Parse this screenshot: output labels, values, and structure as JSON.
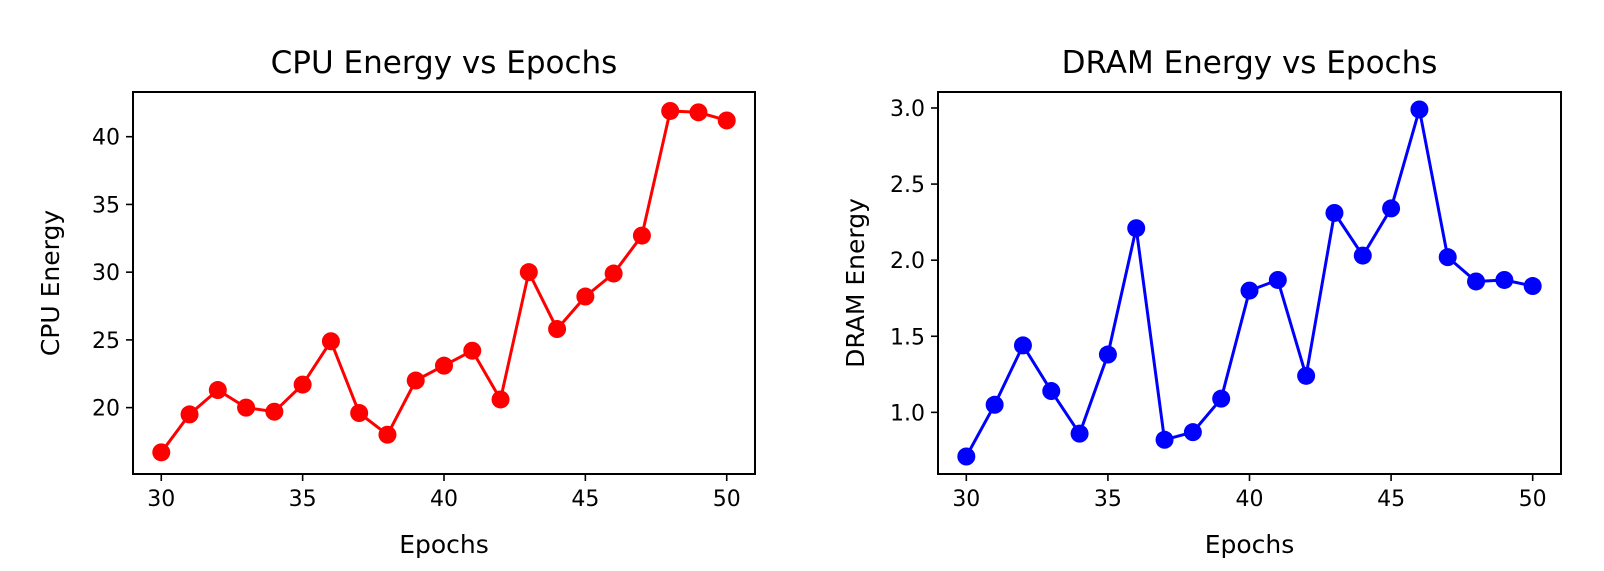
{
  "chart_data": [
    {
      "type": "line",
      "title": "CPU Energy vs Epochs",
      "xlabel": "Epochs",
      "ylabel": "CPU Energy",
      "xlim": [
        29,
        51
      ],
      "ylim": [
        15.1,
        43.3
      ],
      "xticks": [
        30,
        35,
        40,
        45,
        50
      ],
      "yticks": [
        20,
        25,
        30,
        35,
        40
      ],
      "grid": false,
      "color": "#ff0000",
      "marker": "circle",
      "x": [
        30,
        31,
        32,
        33,
        34,
        35,
        36,
        37,
        38,
        39,
        40,
        41,
        42,
        43,
        44,
        45,
        46,
        47,
        48,
        49,
        50
      ],
      "values": [
        16.7,
        19.5,
        21.3,
        20.0,
        19.7,
        21.7,
        24.9,
        19.6,
        18.0,
        22.0,
        23.1,
        24.2,
        20.6,
        30.0,
        25.8,
        28.2,
        29.9,
        32.7,
        41.9,
        41.8,
        41.2
      ]
    },
    {
      "type": "line",
      "title": "DRAM Energy vs Epochs",
      "xlabel": "Epochs",
      "ylabel": "DRAM Energy",
      "xlim": [
        29,
        51
      ],
      "ylim": [
        0.595,
        3.105
      ],
      "xticks": [
        30,
        35,
        40,
        45,
        50
      ],
      "yticks": [
        1.0,
        1.5,
        2.0,
        2.5,
        3.0
      ],
      "ytick_labels": [
        "1.0",
        "1.5",
        "2.0",
        "2.5",
        "3.0"
      ],
      "grid": false,
      "color": "#0000ff",
      "marker": "circle",
      "x": [
        30,
        31,
        32,
        33,
        34,
        35,
        36,
        37,
        38,
        39,
        40,
        41,
        42,
        43,
        44,
        45,
        46,
        47,
        48,
        49,
        50
      ],
      "values": [
        0.71,
        1.05,
        1.44,
        1.14,
        0.86,
        1.38,
        2.21,
        0.82,
        0.87,
        1.09,
        1.8,
        1.87,
        1.24,
        2.31,
        2.03,
        2.34,
        2.99,
        2.02,
        1.86,
        1.87,
        1.83
      ]
    }
  ]
}
